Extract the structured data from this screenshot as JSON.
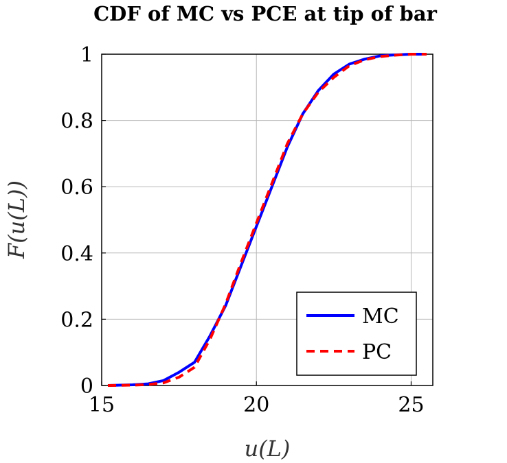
{
  "chart_data": {
    "type": "line",
    "title": "CDF of MC vs PCE at tip of bar",
    "xlabel": "u(L)",
    "ylabel": "F(u(L))",
    "xlim": [
      15,
      25.7
    ],
    "ylim": [
      0,
      1
    ],
    "xticks": [
      15,
      20,
      25
    ],
    "yticks": [
      0,
      0.2,
      0.4,
      0.6,
      0.8,
      1
    ],
    "xtick_labels": [
      "15",
      "20",
      "25"
    ],
    "ytick_labels": [
      "0",
      "0.2",
      "0.4",
      "0.6",
      "0.8",
      "1"
    ],
    "grid": true,
    "legend_position": "bottom-right",
    "series": [
      {
        "name": "MC",
        "color": "#0000ff",
        "style": "solid",
        "x": [
          15.2,
          16.0,
          16.5,
          17.0,
          17.5,
          18.0,
          18.5,
          19.0,
          19.5,
          20.0,
          20.5,
          21.0,
          21.5,
          22.0,
          22.5,
          23.0,
          23.5,
          24.0,
          24.5,
          25.0,
          25.5
        ],
        "y": [
          0.0,
          0.002,
          0.005,
          0.015,
          0.04,
          0.07,
          0.15,
          0.24,
          0.36,
          0.48,
          0.6,
          0.72,
          0.82,
          0.89,
          0.94,
          0.97,
          0.985,
          0.995,
          0.998,
          1.0,
          1.0
        ]
      },
      {
        "name": "PC",
        "color": "#ff0000",
        "style": "dashed",
        "x": [
          15.2,
          16.0,
          16.5,
          17.0,
          17.5,
          18.0,
          18.5,
          19.0,
          19.5,
          20.0,
          20.5,
          21.0,
          21.5,
          22.0,
          22.5,
          23.0,
          23.5,
          24.0,
          24.5,
          25.0,
          25.5
        ],
        "y": [
          0.0,
          0.001,
          0.003,
          0.008,
          0.025,
          0.055,
          0.14,
          0.245,
          0.37,
          0.49,
          0.61,
          0.73,
          0.82,
          0.885,
          0.93,
          0.965,
          0.983,
          0.993,
          0.997,
          1.0,
          1.0
        ]
      }
    ]
  }
}
